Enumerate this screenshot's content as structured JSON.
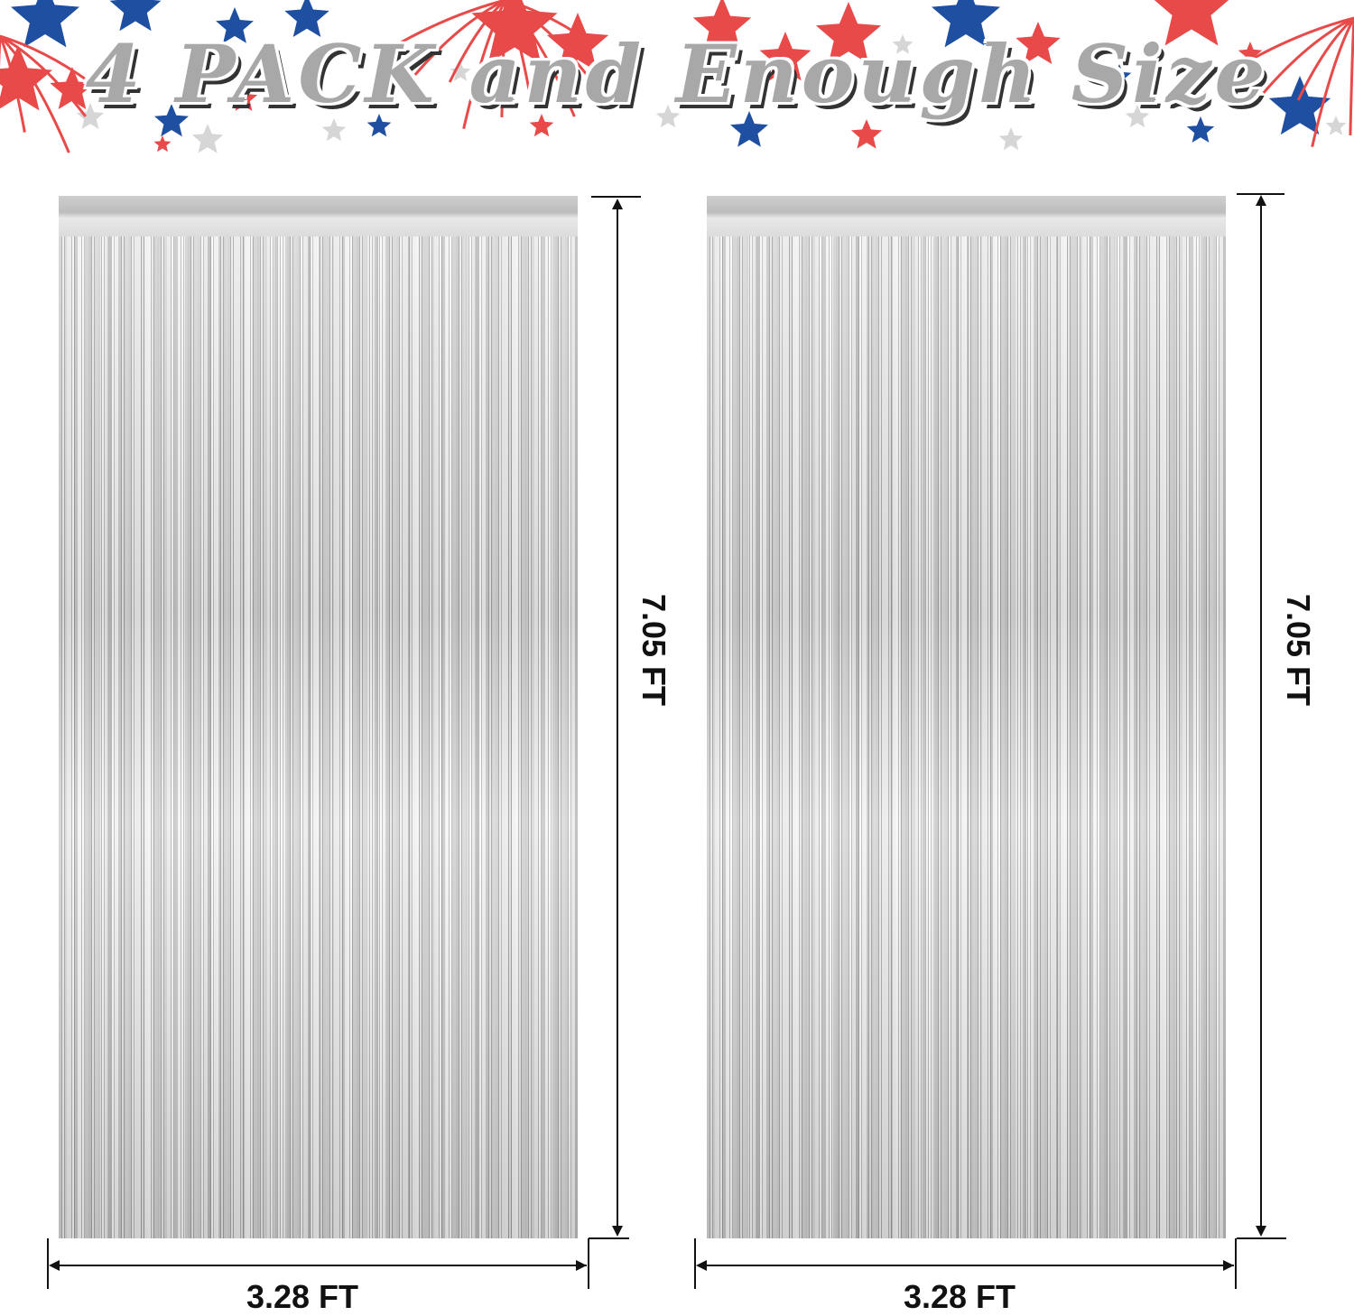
{
  "banner": {
    "title": "4 PACK and Enough Size",
    "colors": {
      "red": "#e84a4a",
      "blue": "#1f4fa0",
      "gray": "#d6d6d6",
      "title": "#a8a8a8"
    }
  },
  "curtains": [
    {
      "color": "silver",
      "height_label": "7.05 FT",
      "width_label": "3.28 FT"
    },
    {
      "color": "silver",
      "height_label": "7.05 FT",
      "width_label": "3.28 FT"
    }
  ]
}
